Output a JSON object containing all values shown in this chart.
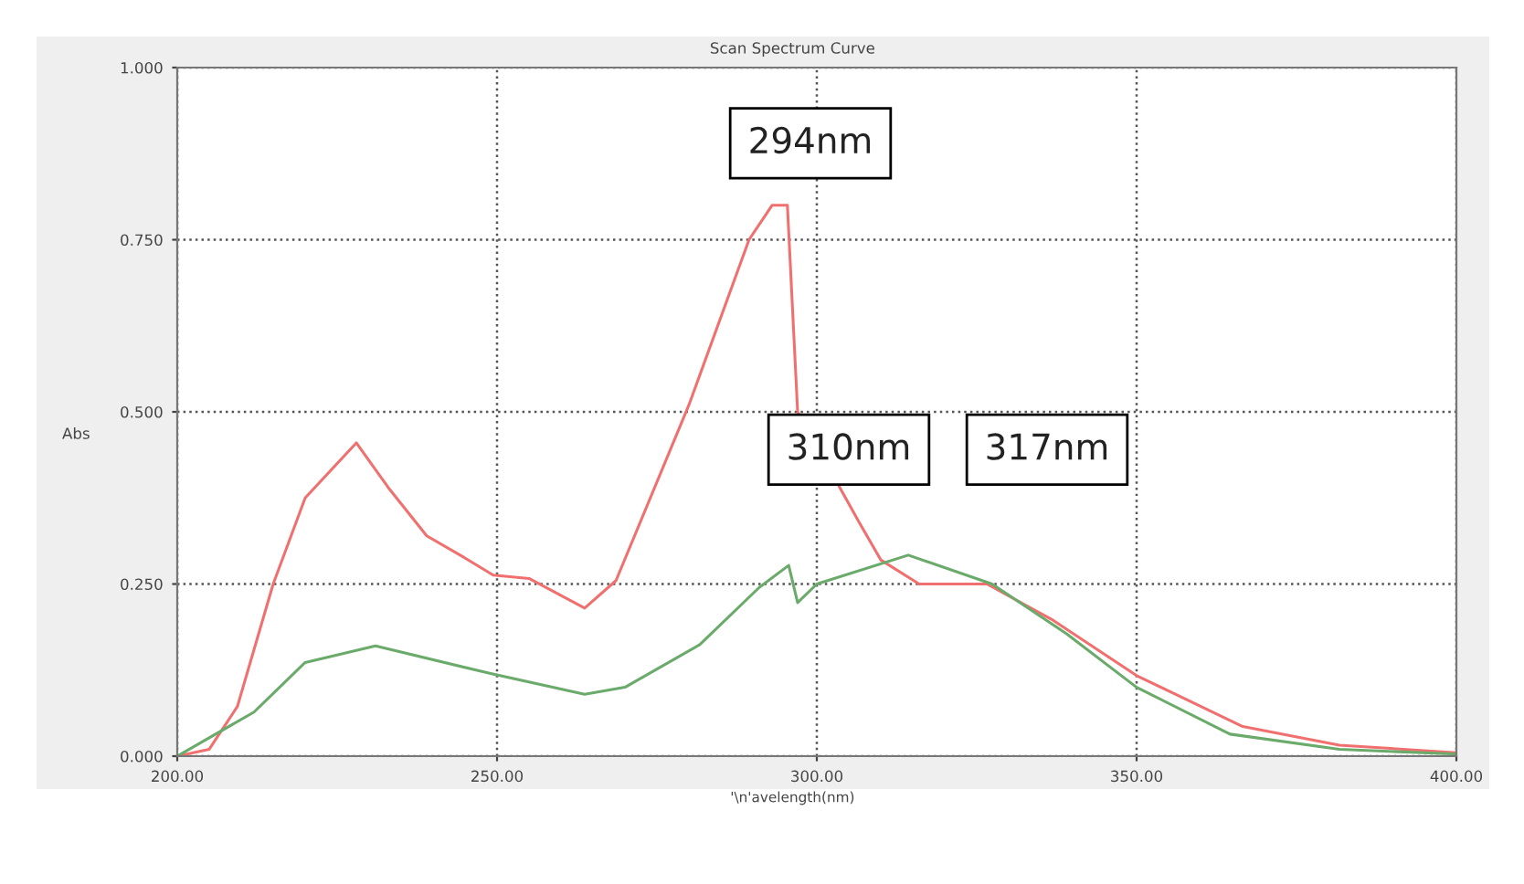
{
  "chart_data": {
    "type": "line",
    "title": "Scan Spectrum Curve",
    "xlabel": "'\\n'avelength(nm)",
    "ylabel": "Abs",
    "series": [
      {
        "color": "#f07070",
        "x": [
          200,
          205,
          209.4,
          215,
          220,
          228,
          233,
          239,
          244.6,
          249.4,
          255,
          263.7,
          268.6,
          280,
          289.4,
          293,
          295.4,
          297,
          306.6,
          310,
          316,
          326.6,
          337,
          350,
          366.6,
          381.7,
          400
        ],
        "values": [
          0,
          0.01,
          0.072,
          0.25,
          0.375,
          0.455,
          0.39,
          0.32,
          0.29,
          0.263,
          0.258,
          0.215,
          0.255,
          0.51,
          0.75,
          0.8,
          0.8,
          0.5,
          0.34,
          0.285,
          0.25,
          0.25,
          0.197,
          0.117,
          0.043,
          0.016,
          0.005
        ]
      },
      {
        "color": "#6aaa6a",
        "x": [
          200,
          212,
          220,
          231,
          249,
          263.7,
          270,
          281.7,
          291,
          295.6,
          297,
          300,
          314.3,
          327.4,
          339,
          350,
          364.6,
          381.7,
          400
        ],
        "values": [
          0,
          0.064,
          0.136,
          0.16,
          0.12,
          0.09,
          0.1,
          0.162,
          0.245,
          0.277,
          0.223,
          0.25,
          0.292,
          0.25,
          0.178,
          0.1,
          0.032,
          0.01,
          0.003
        ]
      }
    ],
    "xlim": [
      200,
      400
    ],
    "xticks": [
      {
        "value": 200,
        "label": "200.00"
      },
      {
        "value": 250,
        "label": "250.00"
      },
      {
        "value": 300,
        "label": "300.00"
      },
      {
        "value": 350,
        "label": "350.00"
      },
      {
        "value": 400,
        "label": "400.00"
      }
    ],
    "ylim": [
      0,
      1
    ],
    "yticks": [
      {
        "value": 0,
        "label": "0.000"
      },
      {
        "value": 0.25,
        "label": "0.250"
      },
      {
        "value": 0.5,
        "label": "0.500"
      },
      {
        "value": 0.75,
        "label": "0.750"
      },
      {
        "value": 1,
        "label": "1.000"
      }
    ],
    "grid": true,
    "annotations": [
      "294nm",
      "310nm",
      "317nm"
    ]
  }
}
